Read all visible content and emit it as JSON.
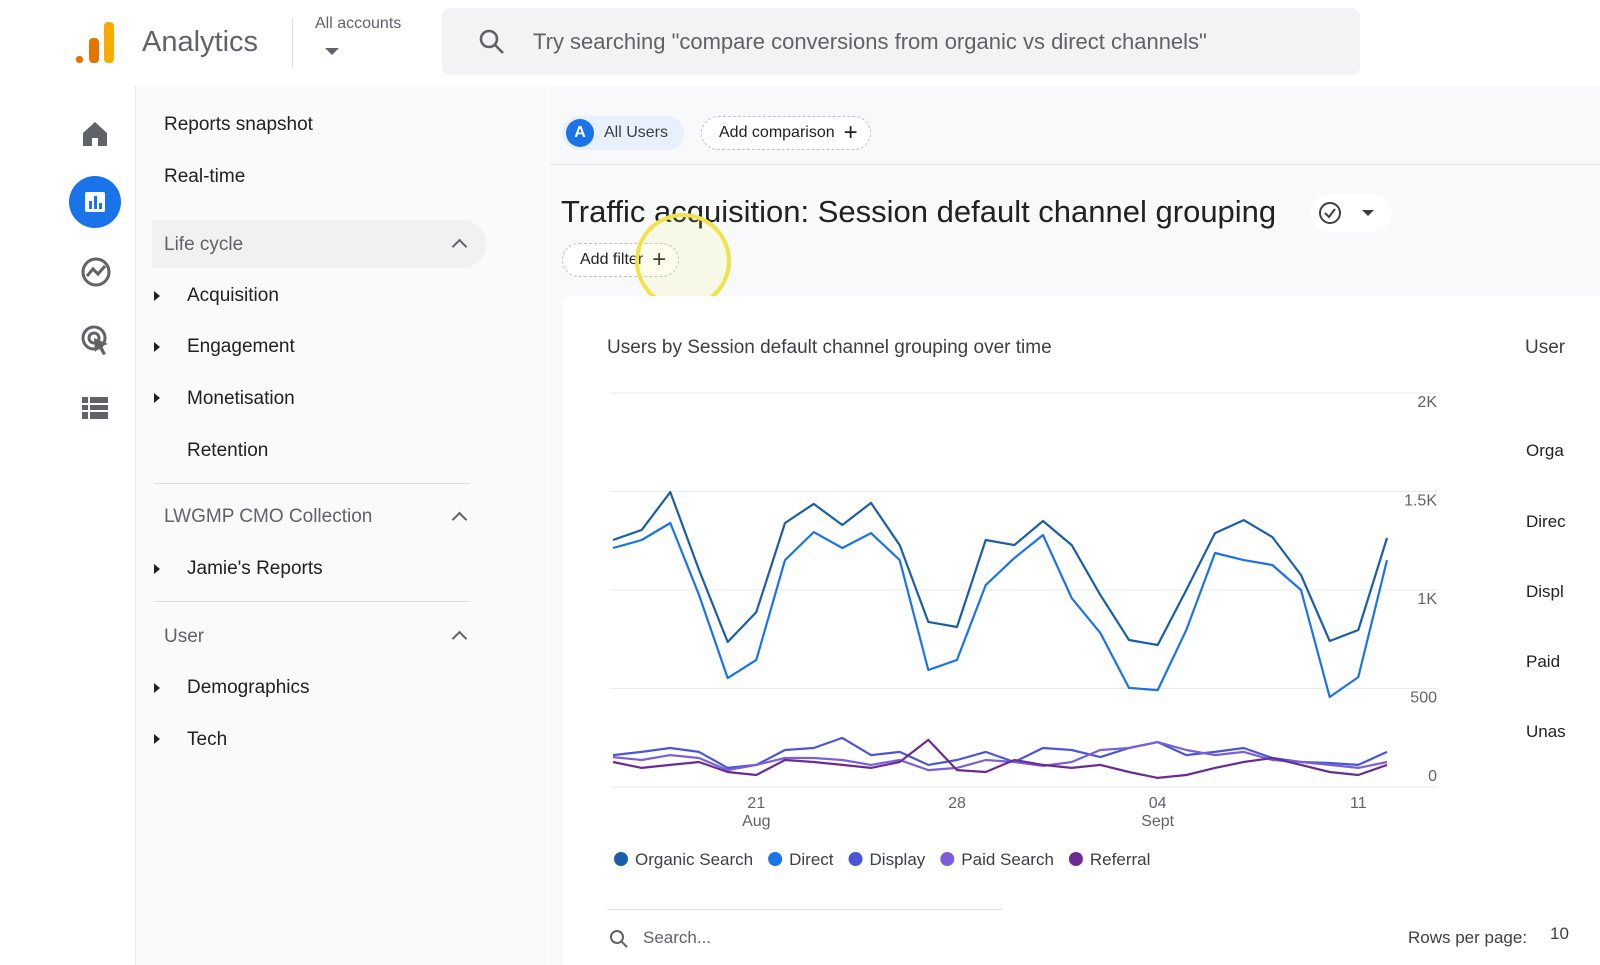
{
  "header": {
    "product": "Analytics",
    "account_label": "All accounts",
    "search_placeholder": "Try searching \"compare conversions from organic vs direct channels\""
  },
  "sidebar": {
    "top_items": [
      "Reports snapshot",
      "Real-time"
    ],
    "sections": [
      {
        "title": "Life cycle",
        "items": [
          "Acquisition",
          "Engagement",
          "Monetisation",
          "Retention"
        ]
      },
      {
        "title": "LWGMP CMO Collection",
        "items": [
          "Jamie's Reports"
        ]
      },
      {
        "title": "User",
        "items": [
          "Demographics",
          "Tech"
        ]
      }
    ]
  },
  "toolbar": {
    "segment_badge": "A",
    "segment": "All Users",
    "add_comparison": "Add comparison",
    "report_title": "Traffic acquisition: Session default channel grouping",
    "add_filter": "Add filter"
  },
  "chart_data": {
    "type": "line",
    "title": "Users by Session default channel grouping over time",
    "categories": [
      null,
      null,
      null,
      null,
      null,
      "21",
      null,
      null,
      null,
      null,
      null,
      null,
      "28",
      null,
      null,
      null,
      null,
      null,
      null,
      "04",
      null,
      null,
      null,
      null,
      null,
      null,
      "11",
      null
    ],
    "category_months": [
      null,
      null,
      null,
      null,
      null,
      "Aug",
      null,
      null,
      null,
      null,
      null,
      null,
      null,
      null,
      null,
      null,
      null,
      null,
      null,
      "Sept",
      null,
      null,
      null,
      null,
      null,
      null,
      null,
      null
    ],
    "series": [
      {
        "name": "Organic Search",
        "color": "#1a5fa6",
        "values": [
          1254,
          1305,
          1497,
          1102,
          736,
          888,
          1340,
          1437,
          1330,
          1442,
          1228,
          838,
          812,
          1254,
          1228,
          1350,
          1228,
          975,
          746,
          721,
          1000,
          1289,
          1355,
          1269,
          1076,
          741,
          797,
          1264
        ]
      },
      {
        "name": "Direct",
        "color": "#1a73e8",
        "values": [
          1213,
          1254,
          1340,
          975,
          553,
          645,
          1152,
          1294,
          1213,
          1289,
          1152,
          594,
          645,
          1025,
          1162,
          1279,
          959,
          782,
          503,
          492,
          797,
          1188,
          1152,
          1127,
          1000,
          457,
          558,
          1152
        ]
      },
      {
        "name": "Display",
        "color": "#4a56d6",
        "values": [
          162,
          178,
          198,
          178,
          97,
          112,
          188,
          198,
          249,
          162,
          178,
          112,
          137,
          178,
          127,
          198,
          188,
          152,
          198,
          228,
          162,
          178,
          198,
          147,
          127,
          122,
          112,
          178
        ]
      },
      {
        "name": "Paid Search",
        "color": "#7b5fd9",
        "values": [
          152,
          137,
          162,
          147,
          86,
          112,
          147,
          147,
          137,
          112,
          137,
          86,
          97,
          137,
          127,
          107,
          127,
          188,
          198,
          228,
          188,
          162,
          178,
          137,
          127,
          112,
          97,
          127
        ]
      },
      {
        "name": "Referral",
        "color": "#6a2c91",
        "values": [
          127,
          97,
          112,
          127,
          76,
          61,
          137,
          127,
          112,
          97,
          127,
          239,
          86,
          76,
          137,
          112,
          97,
          112,
          76,
          46,
          61,
          97,
          127,
          147,
          112,
          76,
          61,
          112
        ]
      }
    ],
    "ylim": [
      0,
      2000
    ],
    "yticks": [
      0,
      500,
      {
        "value": 1000,
        "label": "1K"
      },
      {
        "value": 1500,
        "label": "1.5K"
      },
      {
        "value": 2000,
        "label": "2K"
      }
    ],
    "grid": true
  },
  "side_table": {
    "header": "User",
    "rows": [
      "Orga",
      "Direc",
      "Displ",
      "Paid",
      "Unas"
    ]
  },
  "table_controls": {
    "search_placeholder": "Search...",
    "rows_per_page_label": "Rows per page:",
    "rows_per_page": "10"
  }
}
